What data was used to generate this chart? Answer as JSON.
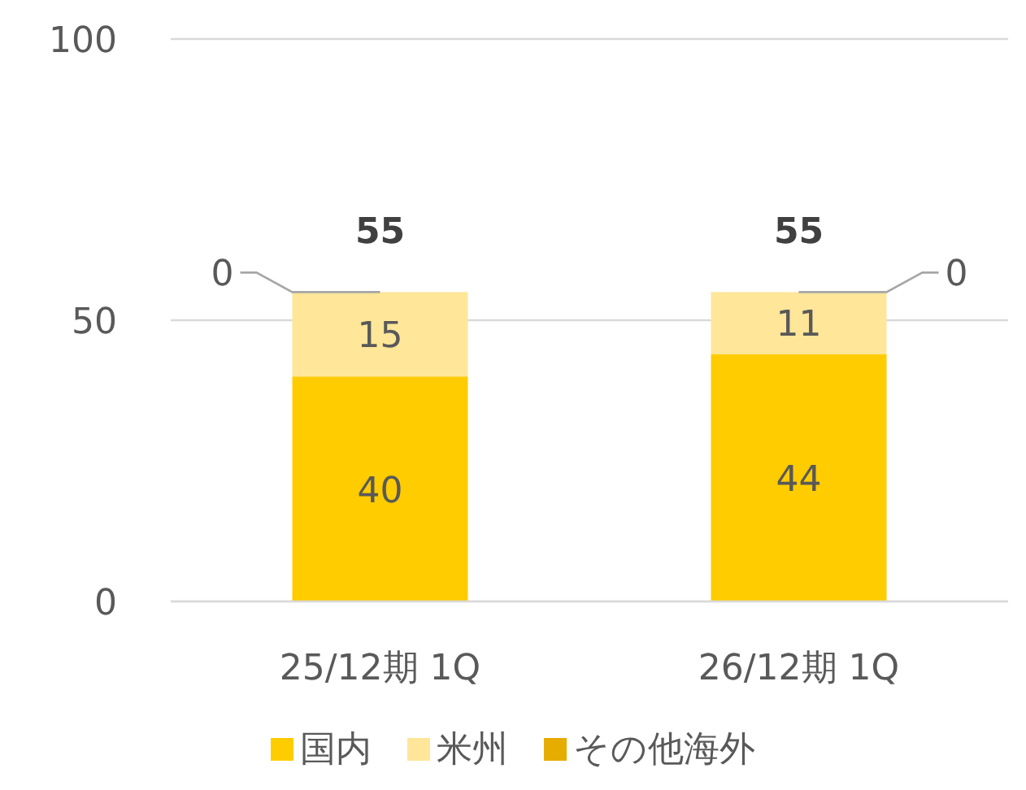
{
  "chart_data": {
    "type": "bar",
    "stacked": true,
    "categories": [
      "25/12期 1Q",
      "26/12期 1Q"
    ],
    "series": [
      {
        "name": "国内",
        "color": "#ffcc00",
        "values": [
          40,
          44
        ]
      },
      {
        "name": "米州",
        "color": "#ffe699",
        "values": [
          15,
          11
        ]
      },
      {
        "name": "その他海外",
        "color": "#e6ac00",
        "values": [
          0,
          0
        ],
        "value_labels": [
          null,
          null
        ]
      }
    ],
    "totals": [
      "55",
      "55"
    ],
    "annotations": [
      {
        "text": "0",
        "x": "25/12期 1Q",
        "y": 55
      },
      {
        "text": "0",
        "x": "26/12期 1Q",
        "y": 55
      }
    ],
    "data_labels": true,
    "ylim": [
      0,
      100
    ],
    "yticks": [
      0,
      50,
      100
    ],
    "grid": "y",
    "legend": "bottom"
  }
}
